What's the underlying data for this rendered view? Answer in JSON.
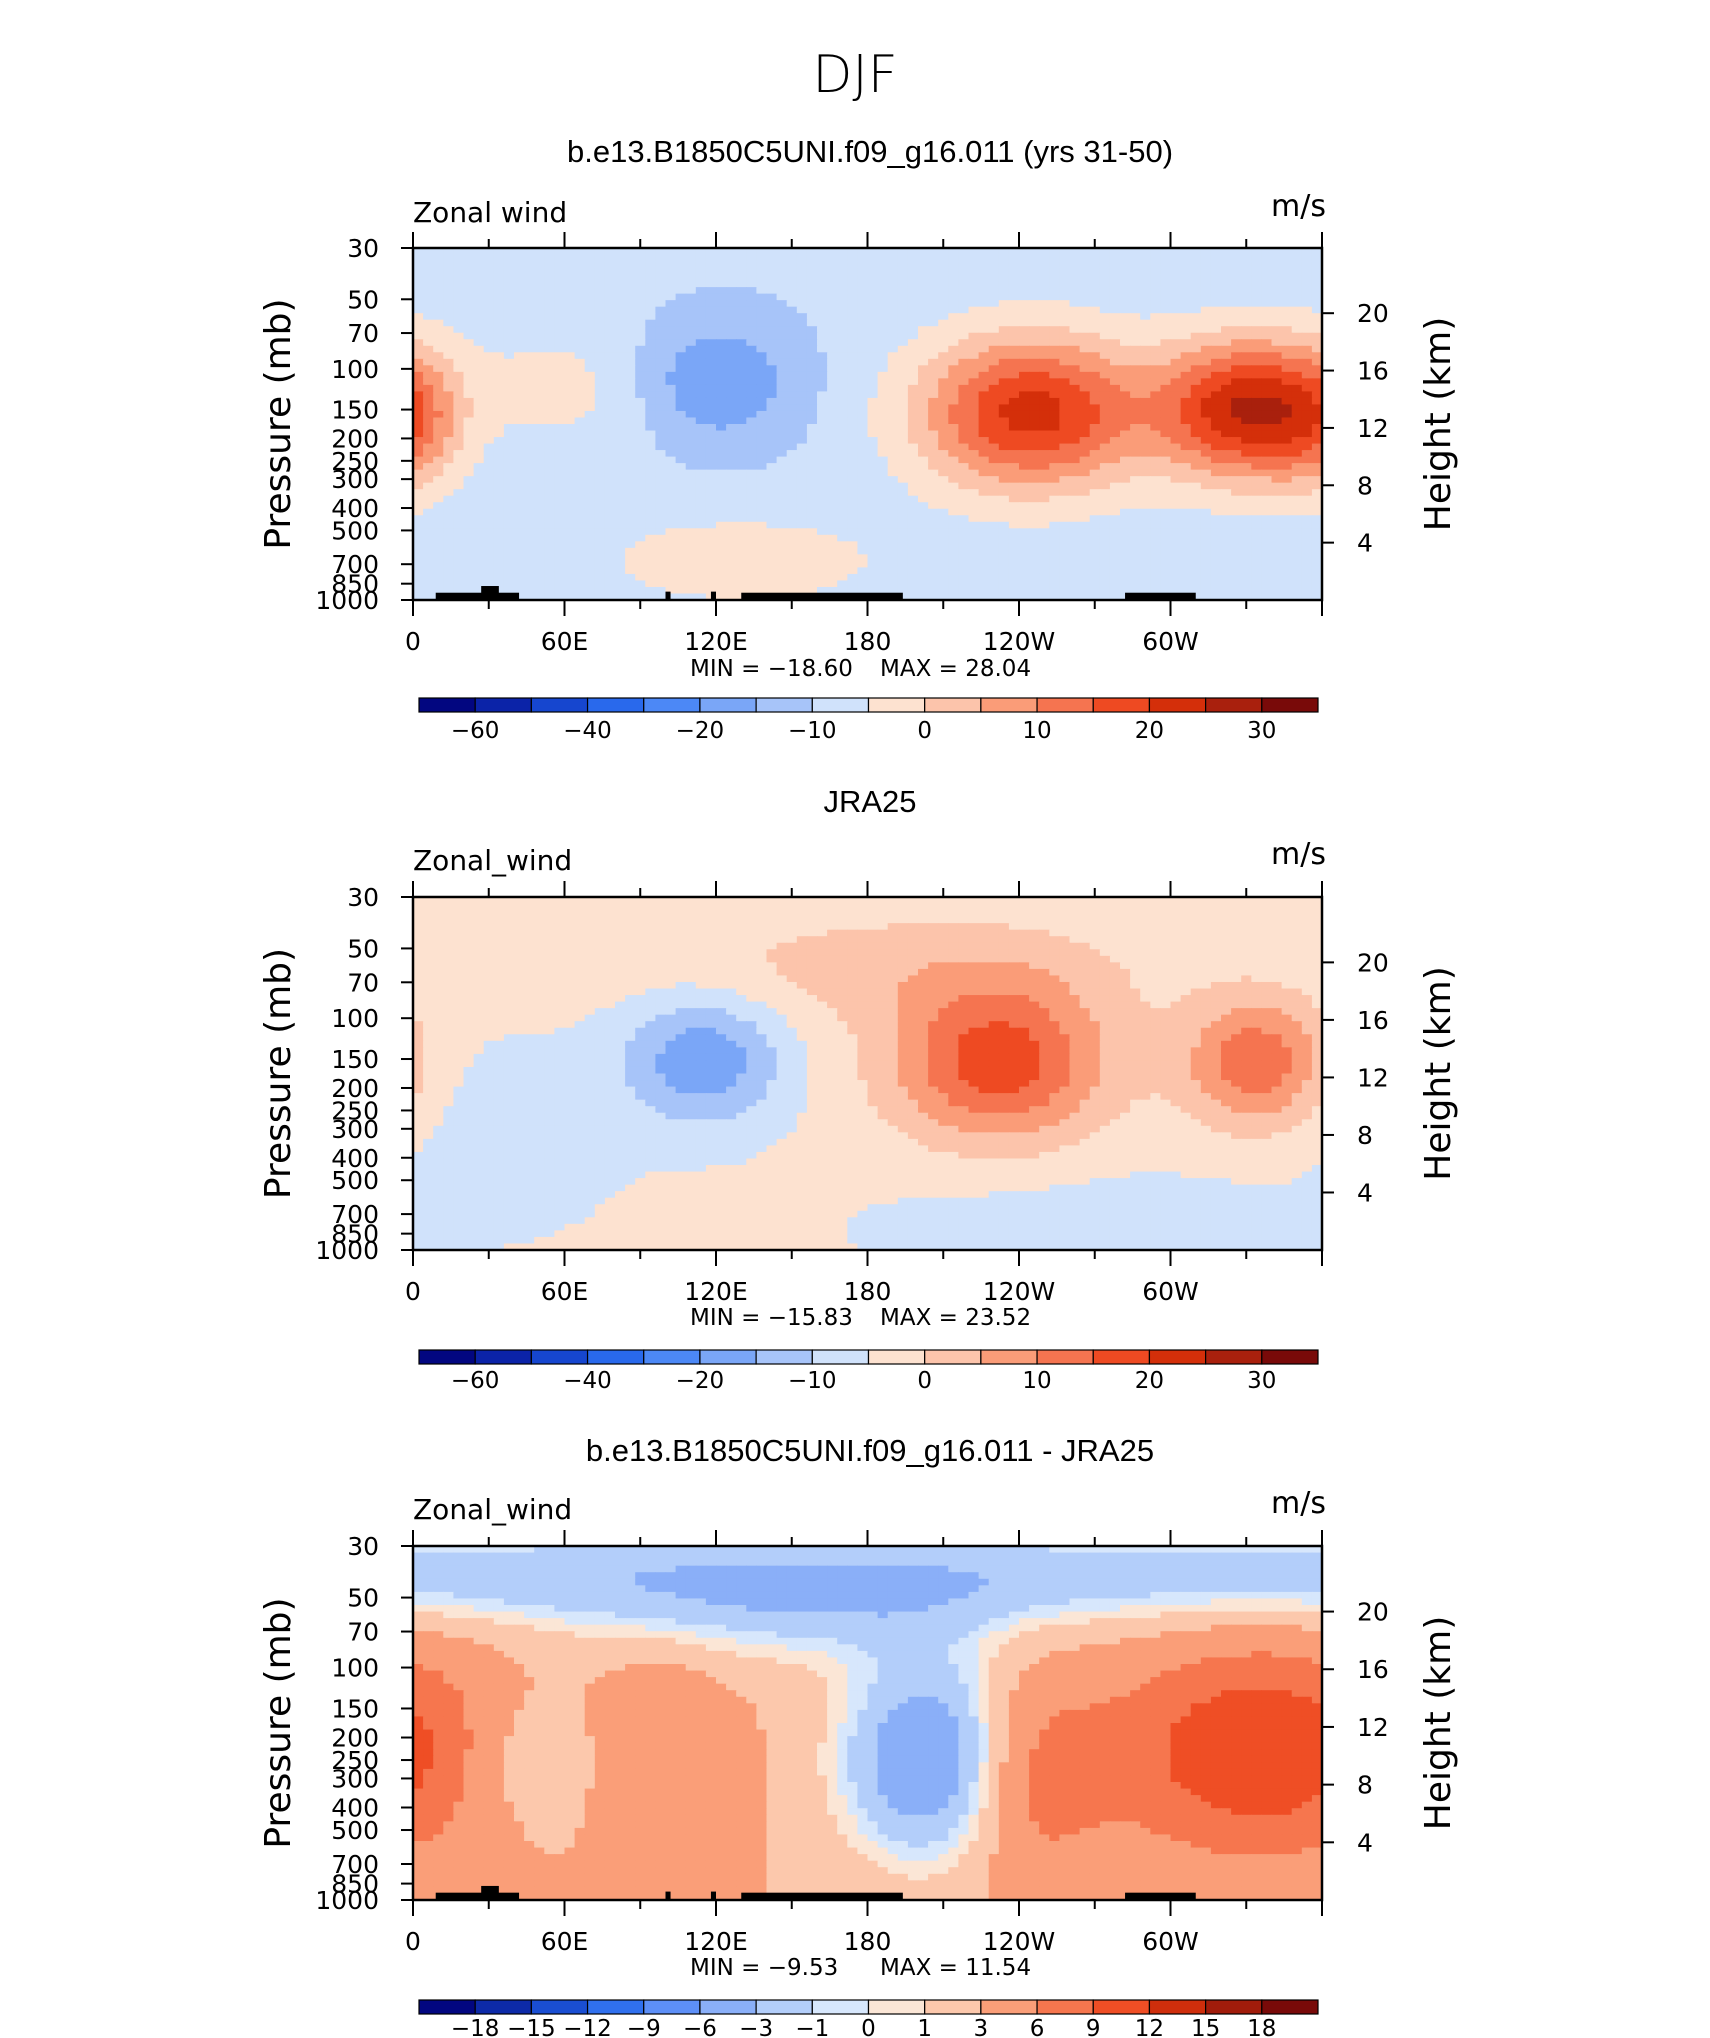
{
  "page_title": "DJF",
  "chart_data": [
    {
      "type": "heatmap",
      "title": "b.e13.B1850C5UNI.f09_g16.011 (yrs 31-50)",
      "field_label": "Zonal wind",
      "units": "m/s",
      "ylabel": "Pressure (mb)",
      "ylabel_right": "Height (km)",
      "x_ticks": [
        "0",
        "60E",
        "120E",
        "180",
        "120W",
        "60W"
      ],
      "y_ticks": [
        "30",
        "50",
        "70",
        "100",
        "150",
        "200",
        "250",
        "300",
        "400",
        "500",
        "700",
        "850",
        "1000"
      ],
      "y2_ticks": [
        "20",
        "16",
        "12",
        "8",
        "4"
      ],
      "min_label": "MIN = −18.60",
      "max_label": "MAX = 28.04",
      "min": -18.6,
      "max": 28.04,
      "background_value": -5,
      "colorbar_labels": [
        "−60",
        "−40",
        "−20",
        "−10",
        "0",
        "10",
        "20",
        "30"
      ],
      "features": [
        {
          "lon": 245,
          "p": 150,
          "value": 26,
          "note": "jet core Pacific"
        },
        {
          "lon": 328,
          "p": 150,
          "value": 28,
          "note": "jet core Atlantic"
        },
        {
          "lon": 116,
          "p": 120,
          "value": -17,
          "note": "easterly minimum"
        },
        {
          "lon": 130,
          "p": 650,
          "value": 4,
          "note": "low-level westerly"
        }
      ]
    },
    {
      "type": "heatmap",
      "title": "JRA25",
      "field_label": "Zonal_wind",
      "units": "m/s",
      "ylabel": "Pressure (mb)",
      "ylabel_right": "Height (km)",
      "x_ticks": [
        "0",
        "60E",
        "120E",
        "180",
        "120W",
        "60W"
      ],
      "y_ticks": [
        "30",
        "50",
        "70",
        "100",
        "150",
        "200",
        "250",
        "300",
        "400",
        "500",
        "700",
        "850",
        "1000"
      ],
      "y2_ticks": [
        "20",
        "16",
        "12",
        "8",
        "4"
      ],
      "min_label": "MIN = −15.83",
      "max_label": "MAX = 23.52",
      "min": -15.83,
      "max": 23.52,
      "background_value": 1,
      "colorbar_labels": [
        "−60",
        "−40",
        "−20",
        "−10",
        "0",
        "10",
        "20",
        "30"
      ],
      "features": [
        {
          "lon": 230,
          "p": 150,
          "value": 23,
          "note": "jet core Pacific"
        },
        {
          "lon": 332,
          "p": 150,
          "value": 19,
          "note": "jet core Atlantic"
        },
        {
          "lon": 118,
          "p": 150,
          "value": -15,
          "note": "easterly minimum"
        }
      ]
    },
    {
      "type": "heatmap",
      "title": "b.e13.B1850C5UNI.f09_g16.011 - JRA25",
      "field_label": "Zonal_wind",
      "units": "m/s",
      "ylabel": "Pressure (mb)",
      "ylabel_right": "Height (km)",
      "x_ticks": [
        "0",
        "60E",
        "120E",
        "180",
        "120W",
        "60W"
      ],
      "y_ticks": [
        "30",
        "50",
        "70",
        "100",
        "150",
        "200",
        "250",
        "300",
        "400",
        "500",
        "700",
        "850",
        "1000"
      ],
      "y2_ticks": [
        "20",
        "16",
        "12",
        "8",
        "4"
      ],
      "min_label": "MIN = −9.53",
      "max_label": "MAX = 11.54",
      "min": -9.53,
      "max": 11.54,
      "background_value": -4,
      "colorbar_labels": [
        "−18",
        "−15",
        "−12",
        "−9",
        "−6",
        "−3",
        "−1",
        "0",
        "1",
        "3",
        "6",
        "9",
        "12",
        "15",
        "18"
      ],
      "features": [
        {
          "lon": 210,
          "p": 200,
          "value": -9,
          "note": "negative difference core"
        },
        {
          "lon": 340,
          "p": 220,
          "value": 11,
          "note": "positive difference core"
        }
      ]
    }
  ],
  "colorbar_colors": [
    "#020680",
    "#0b23a8",
    "#1646cf",
    "#2969ec",
    "#4c88f6",
    "#7aa6f7",
    "#a7c4f9",
    "#d0e2fb",
    "#fde2d0",
    "#fcc4ab",
    "#fa9c78",
    "#f57450",
    "#ee4a22",
    "#d42f0a",
    "#a9200d",
    "#790a09"
  ],
  "colorbar_colors_diff": [
    "#020680",
    "#0d2aa8",
    "#1a4ed2",
    "#3070ee",
    "#5d8ff7",
    "#8aaff8",
    "#b3cefa",
    "#d7e7fc",
    "#fbe6d6",
    "#fcc8ac",
    "#fa9e78",
    "#f6764e",
    "#ef4e25",
    "#cf2e0c",
    "#a11c0b",
    "#790a09"
  ]
}
